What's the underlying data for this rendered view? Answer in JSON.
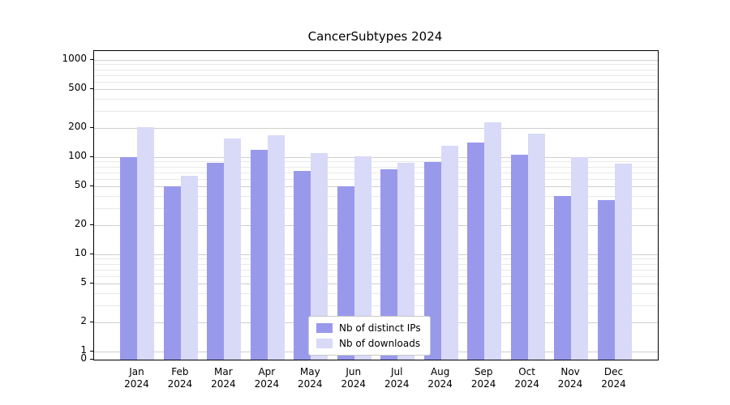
{
  "chart_data": {
    "type": "bar",
    "title": "CancerSubtypes 2024",
    "year": "2024",
    "categories": [
      "Jan",
      "Feb",
      "Mar",
      "Apr",
      "May",
      "Jun",
      "Jul",
      "Aug",
      "Sep",
      "Oct",
      "Nov",
      "Dec"
    ],
    "series": [
      {
        "name": "Nb of distinct IPs",
        "color": "#9999ec",
        "values": [
          100,
          50,
          88,
          120,
          72,
          50,
          75,
          90,
          140,
          105,
          40,
          36
        ]
      },
      {
        "name": "Nb of downloads",
        "color": "#d9d9f8",
        "values": [
          205,
          64,
          155,
          168,
          110,
          102,
          88,
          130,
          228,
          175,
          100,
          86
        ]
      }
    ],
    "y_ticks": [
      0,
      1,
      2,
      5,
      10,
      20,
      50,
      100,
      200,
      500,
      1000
    ],
    "y_minor_gridlines": [
      3,
      4,
      6,
      7,
      8,
      9,
      30,
      40,
      60,
      70,
      80,
      90,
      300,
      400,
      600,
      700,
      800,
      900
    ],
    "y_scale": "log",
    "grid": true,
    "legend_position": "lower center",
    "xlabel": "",
    "ylabel": ""
  }
}
